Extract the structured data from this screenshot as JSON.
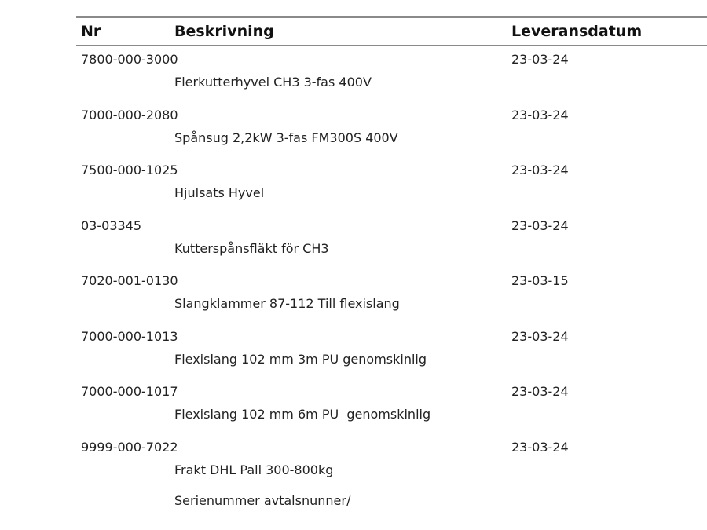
{
  "table": {
    "headers": {
      "nr": "Nr",
      "description": "Beskrivning",
      "delivery_date": "Leveransdatum"
    },
    "rows": [
      {
        "nr": "7800-000-3000",
        "description": "Flerkutterhyvel CH3 3-fas 400V",
        "delivery_date": "23-03-24"
      },
      {
        "nr": "7000-000-2080",
        "description": "Spånsug 2,2kW 3-fas FM300S 400V",
        "delivery_date": "23-03-24"
      },
      {
        "nr": "7500-000-1025",
        "description": "Hjulsats Hyvel",
        "delivery_date": "23-03-24"
      },
      {
        "nr": "03-03345",
        "description": "Kutterspånsfläkt för CH3",
        "delivery_date": "23-03-24"
      },
      {
        "nr": "7020-001-0130",
        "description": "Slangklammer 87-112 Till flexislang",
        "delivery_date": "23-03-15"
      },
      {
        "nr": "7000-000-1013",
        "description": "Flexislang 102 mm 3m PU genomskinlig",
        "delivery_date": "23-03-24"
      },
      {
        "nr": "7000-000-1017",
        "description": "Flexislang 102 mm 6m PU  genomskinlig",
        "delivery_date": "23-03-24"
      },
      {
        "nr": "9999-000-7022",
        "description": "Frakt DHL Pall 300-800kg",
        "delivery_date": "23-03-24"
      }
    ],
    "footer_note": "Serienummer avtalsnunner/"
  }
}
